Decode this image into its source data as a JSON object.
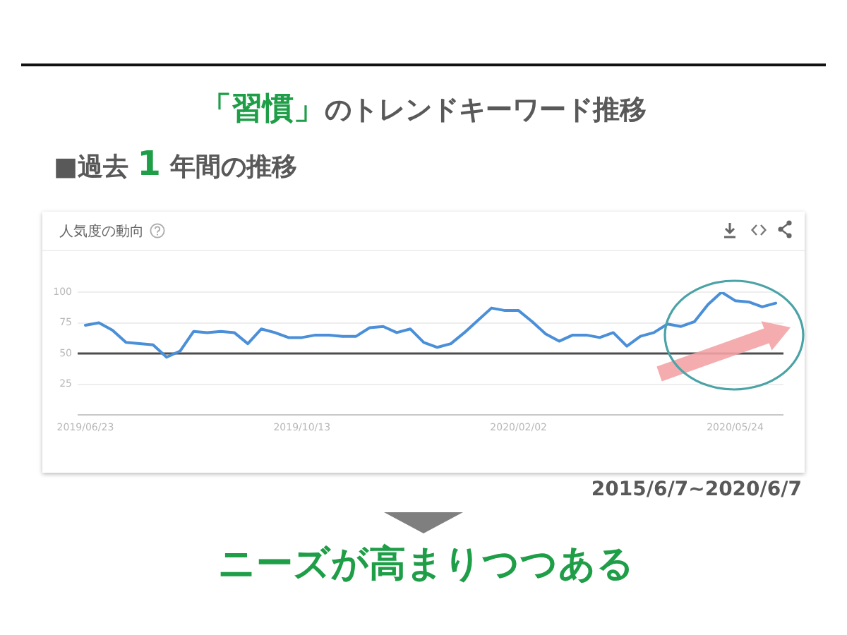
{
  "chart_data": {
    "type": "line",
    "title": "「習慣」のトレンドキーワード推移",
    "subtitle": "■過去 1 年間の推移",
    "annotations": [
      "人気度の動向",
      "2015/6/7~2020/6/7",
      "ニーズが高まりつつある"
    ],
    "x": [
      "2019-06-23",
      "2019-06-30",
      "2019-07-07",
      "2019-07-14",
      "2019-07-21",
      "2019-07-28",
      "2019-08-04",
      "2019-08-11",
      "2019-08-18",
      "2019-08-25",
      "2019-09-01",
      "2019-09-08",
      "2019-09-15",
      "2019-09-22",
      "2019-09-29",
      "2019-10-06",
      "2019-10-13",
      "2019-10-20",
      "2019-10-27",
      "2019-11-03",
      "2019-11-10",
      "2019-11-17",
      "2019-11-24",
      "2019-12-01",
      "2019-12-08",
      "2019-12-15",
      "2019-12-22",
      "2019-12-29",
      "2020-01-05",
      "2020-01-12",
      "2020-01-19",
      "2020-01-26",
      "2020-02-02",
      "2020-02-09",
      "2020-02-16",
      "2020-02-23",
      "2020-03-01",
      "2020-03-08",
      "2020-03-15",
      "2020-03-22",
      "2020-03-29",
      "2020-04-05",
      "2020-04-12",
      "2020-04-19",
      "2020-04-26",
      "2020-05-03",
      "2020-05-10",
      "2020-05-17",
      "2020-05-24",
      "2020-05-31",
      "2020-06-07",
      "2020-06-14"
    ],
    "values": [
      73,
      75,
      69,
      59,
      58,
      57,
      47,
      52,
      68,
      67,
      68,
      67,
      58,
      70,
      67,
      63,
      63,
      65,
      65,
      64,
      64,
      71,
      72,
      67,
      70,
      59,
      55,
      58,
      67,
      77,
      87,
      85,
      85,
      76,
      66,
      60,
      65,
      65,
      63,
      67,
      56,
      64,
      67,
      74,
      72,
      76,
      90,
      100,
      93,
      92,
      88,
      91
    ],
    "color": "#4a8fd8",
    "xlim": [
      "2019-06-19",
      "2020-06-18"
    ],
    "xticks": [
      {
        "value": "2019-06-23",
        "label": "2019/06/23"
      },
      {
        "value": "2019-10-13",
        "label": "2019/10/13"
      },
      {
        "value": "2020-02-02",
        "label": "2020/02/02"
      },
      {
        "value": "2020-05-24",
        "label": "2020/05/24"
      }
    ],
    "ylim": [
      0,
      100
    ],
    "yticks": [
      {
        "value": 0,
        "label": null
      },
      25,
      50,
      75,
      100
    ],
    "grid": "y",
    "ref_lines": [
      {
        "axis": "y",
        "value": 50,
        "color": "#4d4d4d"
      }
    ],
    "legend": false,
    "marker": "none",
    "line_style": "solid"
  }
}
